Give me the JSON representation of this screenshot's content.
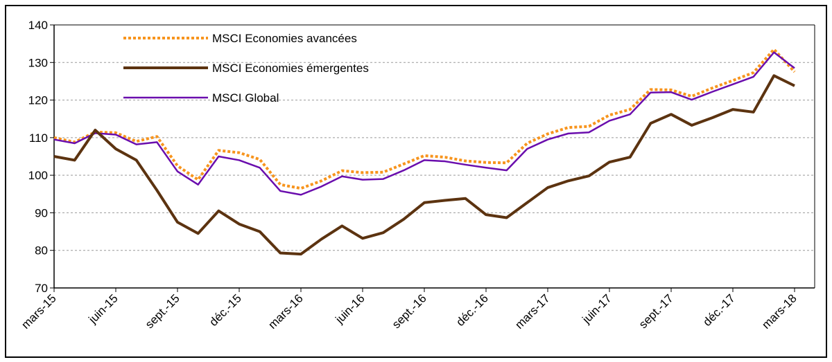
{
  "chart_data": {
    "type": "line",
    "categories": [
      "mars-15",
      null,
      null,
      "juin-15",
      null,
      null,
      "sept.-15",
      null,
      null,
      "déc.-15",
      null,
      null,
      "mars-16",
      null,
      null,
      "juin-16",
      null,
      null,
      "sept.-16",
      null,
      null,
      "déc.-16",
      null,
      null,
      "mars-17",
      null,
      null,
      "juin-17",
      null,
      null,
      "sept.-17",
      null,
      null,
      "déc.-17",
      null,
      null,
      "mars-18"
    ],
    "series": [
      {
        "name": "MSCI Economies avancées",
        "color": "#f7941d",
        "dashed": true,
        "values": [
          110,
          108.8,
          111.5,
          111.3,
          109,
          110.3,
          102.5,
          98.8,
          106.6,
          106,
          104.2,
          97.5,
          96.5,
          98.5,
          101.2,
          100.7,
          100.8,
          103,
          105.2,
          104.8,
          103.8,
          103.4,
          103.3,
          108.5,
          111,
          112.7,
          113,
          116,
          117.5,
          122.8,
          122.7,
          121,
          123.2,
          125.2,
          127.3,
          133.5,
          127.5
        ]
      },
      {
        "name": "MSCI Economies émergentes",
        "color": "#5c3310",
        "dashed": false,
        "values": [
          105,
          104,
          112,
          107,
          104,
          96,
          87.5,
          84.5,
          90.5,
          87,
          85,
          79.3,
          79,
          83,
          86.5,
          83.2,
          84.7,
          88.3,
          92.7,
          93.3,
          93.8,
          89.5,
          88.7,
          92.7,
          96.7,
          98.5,
          99.8,
          103.5,
          104.8,
          113.8,
          116.2,
          113.3,
          115.3,
          117.5,
          116.8,
          126.5,
          123.8
        ]
      },
      {
        "name": "MSCI Global",
        "color": "#6a0dad",
        "dashed": false,
        "values": [
          109.5,
          108.5,
          111.2,
          110.8,
          108.2,
          108.8,
          101,
          97.5,
          105,
          104,
          102,
          95.8,
          94.8,
          97,
          99.7,
          98.8,
          99,
          101.3,
          104,
          103.7,
          102.8,
          102,
          101.3,
          107,
          109.5,
          111.1,
          111.4,
          114.5,
          116.2,
          122,
          122.1,
          120.1,
          122.2,
          124.2,
          126.2,
          132.7,
          128.5
        ]
      }
    ],
    "ylim": [
      70,
      140
    ],
    "yticks": [
      70,
      80,
      90,
      100,
      110,
      120,
      130,
      140
    ],
    "grid": true
  }
}
